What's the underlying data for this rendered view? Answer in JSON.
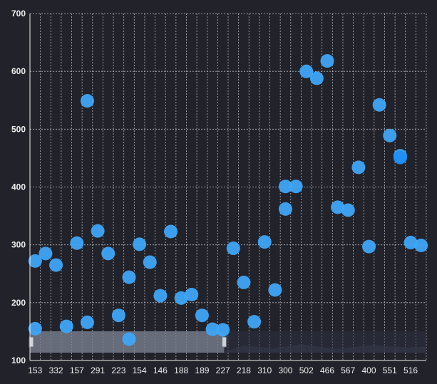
{
  "chart_data": {
    "type": "scatter",
    "title": "",
    "xlabel": "",
    "ylabel": "",
    "x_tick_labels": [
      "153",
      "332",
      "157",
      "291",
      "223",
      "154",
      "146",
      "188",
      "189",
      "227",
      "218",
      "310",
      "300",
      "502",
      "466",
      "567",
      "400",
      "551",
      "516"
    ],
    "y_ticks": [
      100,
      200,
      300,
      400,
      500,
      600,
      700
    ],
    "ylim": [
      100,
      700
    ],
    "grid": true,
    "x_categories": [
      "153",
      "",
      "332",
      "",
      "157",
      "",
      "291",
      "",
      "223",
      "",
      "154",
      "",
      "146",
      "",
      "188",
      "",
      "189",
      "",
      "227",
      "",
      "218",
      "",
      "310",
      "",
      "300",
      "",
      "502",
      "",
      "466",
      "",
      "567",
      "",
      "400",
      "",
      "551",
      "",
      "516",
      ""
    ],
    "points": [
      {
        "i": 0,
        "y": 155
      },
      {
        "i": 0,
        "y": 272
      },
      {
        "i": 1,
        "y": 285
      },
      {
        "i": 2,
        "y": 265
      },
      {
        "i": 3,
        "y": 159
      },
      {
        "i": 4,
        "y": 303
      },
      {
        "i": 5,
        "y": 166
      },
      {
        "i": 5,
        "y": 549
      },
      {
        "i": 6,
        "y": 324
      },
      {
        "i": 7,
        "y": 285
      },
      {
        "i": 8,
        "y": 178
      },
      {
        "i": 9,
        "y": 244
      },
      {
        "i": 9,
        "y": 137
      },
      {
        "i": 10,
        "y": 301
      },
      {
        "i": 11,
        "y": 270
      },
      {
        "i": 12,
        "y": 212
      },
      {
        "i": 13,
        "y": 323
      },
      {
        "i": 14,
        "y": 208
      },
      {
        "i": 15,
        "y": 214
      },
      {
        "i": 16,
        "y": 178
      },
      {
        "i": 17,
        "y": 154
      },
      {
        "i": 18,
        "y": 153
      },
      {
        "i": 19,
        "y": 294
      },
      {
        "i": 20,
        "y": 235
      },
      {
        "i": 21,
        "y": 167
      },
      {
        "i": 22,
        "y": 305
      },
      {
        "i": 23,
        "y": 222
      },
      {
        "i": 24,
        "y": 401
      },
      {
        "i": 24,
        "y": 362
      },
      {
        "i": 25,
        "y": 401
      },
      {
        "i": 26,
        "y": 600
      },
      {
        "i": 27,
        "y": 588
      },
      {
        "i": 28,
        "y": 618
      },
      {
        "i": 29,
        "y": 365
      },
      {
        "i": 30,
        "y": 360
      },
      {
        "i": 31,
        "y": 434
      },
      {
        "i": 32,
        "y": 297
      },
      {
        "i": 33,
        "y": 542
      },
      {
        "i": 34,
        "y": 489
      },
      {
        "i": 35,
        "y": 454
      },
      {
        "i": 35,
        "y": 451
      },
      {
        "i": 36,
        "y": 304
      },
      {
        "i": 37,
        "y": 299
      }
    ],
    "colors": {
      "background": "#22222b",
      "point": "#3fa6f7",
      "point_highlight": "#1e8ff5",
      "grid": "#cfd3d9",
      "axis_text": "#eeeeee",
      "zoom_window": "#9aa3b2"
    },
    "data_zoom": {
      "start": 0,
      "end": 0.49
    }
  }
}
